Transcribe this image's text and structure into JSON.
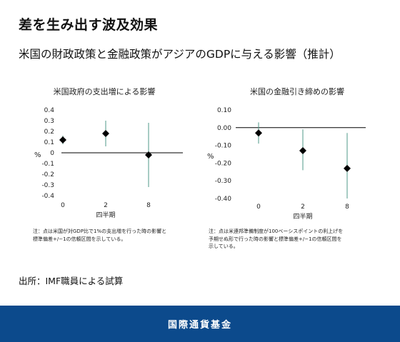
{
  "page": {
    "title": "差を生み出す波及効果",
    "subtitle": "米国の財政政策と金融政策がアジアのGDPに与える影響（推計）",
    "source": "出所：IMF職員による試算",
    "footer": "国際通貨基金"
  },
  "colors": {
    "marker": "#000000",
    "errorbar": "#4f9a8a",
    "axis": "#000000",
    "footer_bg": "#0c4a8c"
  },
  "chart_data": [
    {
      "type": "scatter",
      "title": "米国政府の支出増による影響",
      "ylabel": "%",
      "xlabel": "四半期",
      "categories": [
        "0",
        "2",
        "8"
      ],
      "values": [
        0.12,
        0.18,
        -0.02
      ],
      "error_low": [
        0.08,
        0.06,
        -0.32
      ],
      "error_high": [
        0.16,
        0.3,
        0.28
      ],
      "ylim": [
        -0.4,
        0.4
      ],
      "yticks": [
        "0.4",
        "0.3",
        "0.2",
        "0.1",
        "0",
        "-0.1",
        "-0.2",
        "-0.3",
        "-0.4"
      ],
      "ytick_values": [
        0.4,
        0.3,
        0.2,
        0.1,
        0,
        -0.1,
        -0.2,
        -0.3,
        -0.4
      ],
      "note_lines": [
        "注：点は米国が対GDP比で1%の支出増を行った時の影響と",
        "標準偏差+/−1の信頼区間を示している。"
      ]
    },
    {
      "type": "scatter",
      "title": "米国の金融引き締めの影響",
      "ylabel": "%",
      "xlabel": "四半期",
      "categories": [
        "0",
        "2",
        "8"
      ],
      "values": [
        -0.03,
        -0.13,
        -0.23
      ],
      "error_low": [
        -0.09,
        -0.24,
        -0.4
      ],
      "error_high": [
        0.03,
        -0.01,
        -0.03
      ],
      "ylim": [
        -0.4,
        0.1
      ],
      "yticks": [
        "0.10",
        "0.00",
        "-0.10",
        "-0.20",
        "-0.30",
        "-0.40"
      ],
      "ytick_values": [
        0.1,
        0.0,
        -0.1,
        -0.2,
        -0.3,
        -0.4
      ],
      "note_lines": [
        "注：点は米連邦準備制度が100ベーシスポイントの利上げを",
        "予期せぬ形で行った時の影響と標準偏差+/−1の信頼区間を",
        "示している。"
      ]
    }
  ]
}
